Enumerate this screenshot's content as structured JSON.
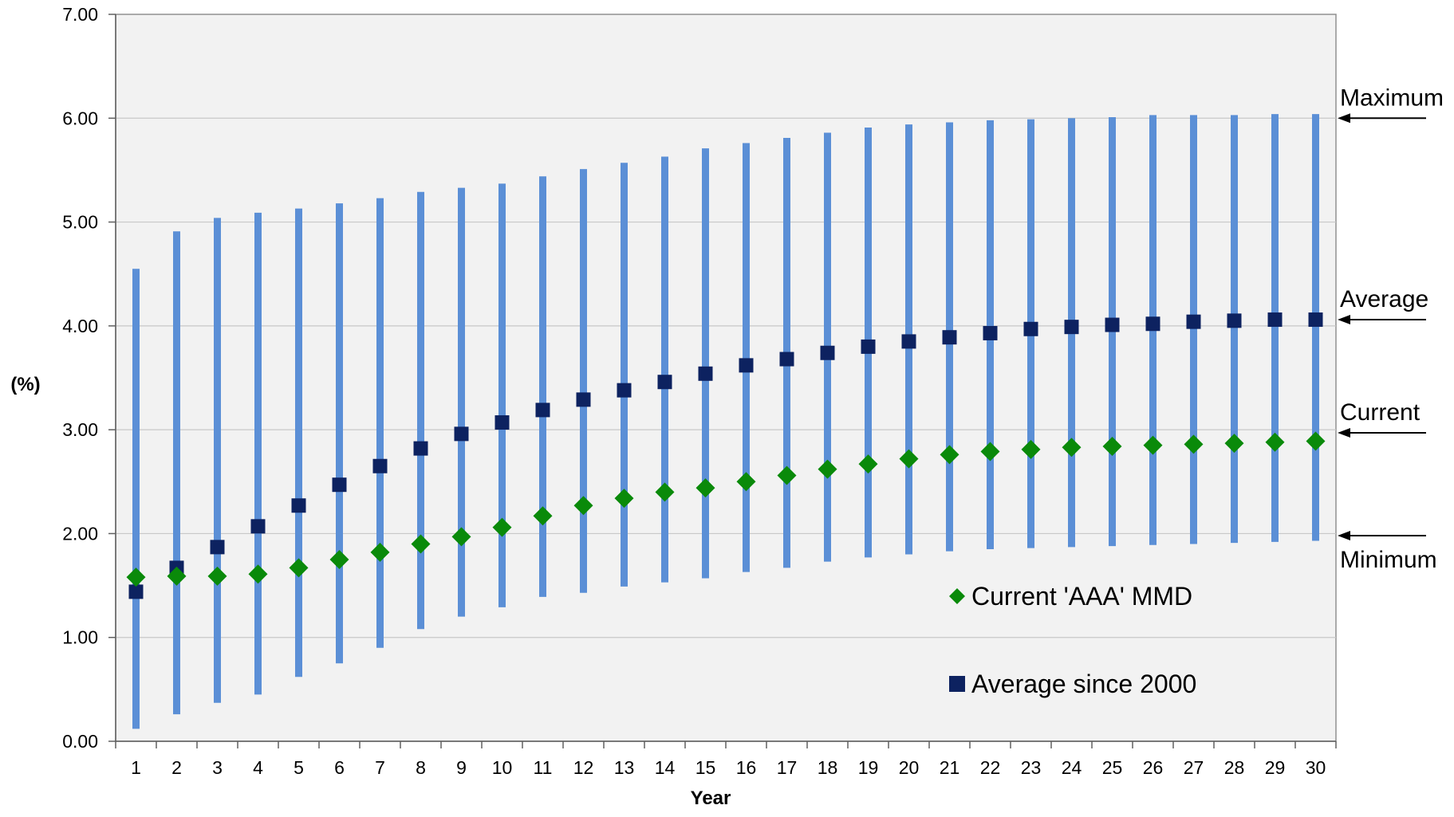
{
  "chart_data": {
    "type": "scatter",
    "title": "",
    "xlabel": "Year",
    "ylabel": "(%)",
    "x": [
      1,
      2,
      3,
      4,
      5,
      6,
      7,
      8,
      9,
      10,
      11,
      12,
      13,
      14,
      15,
      16,
      17,
      18,
      19,
      20,
      21,
      22,
      23,
      24,
      25,
      26,
      27,
      28,
      29,
      30
    ],
    "x_tick_labels": [
      "1",
      "2",
      "3",
      "4",
      "5",
      "6",
      "7",
      "8",
      "9",
      "10",
      "11",
      "12",
      "13",
      "14",
      "15",
      "16",
      "17",
      "18",
      "19",
      "20",
      "21",
      "22",
      "23",
      "24",
      "25",
      "26",
      "27",
      "28",
      "29",
      "30"
    ],
    "ylim": [
      0,
      7
    ],
    "y_tick_labels": [
      "0.00",
      "1.00",
      "2.00",
      "3.00",
      "4.00",
      "5.00",
      "6.00",
      "7.00"
    ],
    "y_ticks": [
      0,
      1,
      2,
      3,
      4,
      5,
      6,
      7
    ],
    "grid": "horizontal",
    "range": {
      "min": [
        0.12,
        0.26,
        0.37,
        0.45,
        0.62,
        0.75,
        0.9,
        1.08,
        1.2,
        1.29,
        1.39,
        1.43,
        1.49,
        1.53,
        1.57,
        1.63,
        1.67,
        1.73,
        1.77,
        1.8,
        1.83,
        1.85,
        1.86,
        1.87,
        1.88,
        1.89,
        1.9,
        1.91,
        1.92,
        1.93
      ],
      "max": [
        4.55,
        4.91,
        5.04,
        5.09,
        5.13,
        5.18,
        5.23,
        5.29,
        5.33,
        5.37,
        5.44,
        5.51,
        5.57,
        5.63,
        5.71,
        5.76,
        5.81,
        5.86,
        5.91,
        5.94,
        5.96,
        5.98,
        5.99,
        6.0,
        6.01,
        6.03,
        6.03,
        6.03,
        6.04,
        6.04
      ]
    },
    "series": [
      {
        "name": "Current 'AAA' MMD",
        "marker": "diamond",
        "color": "#0a8a0a",
        "values": [
          1.58,
          1.59,
          1.59,
          1.61,
          1.67,
          1.75,
          1.82,
          1.9,
          1.97,
          2.06,
          2.17,
          2.27,
          2.34,
          2.4,
          2.44,
          2.5,
          2.56,
          2.62,
          2.67,
          2.72,
          2.76,
          2.79,
          2.81,
          2.83,
          2.84,
          2.85,
          2.86,
          2.87,
          2.88,
          2.89
        ]
      },
      {
        "name": "Average since 2000",
        "marker": "square",
        "color": "#0d2260",
        "values": [
          1.44,
          1.67,
          1.87,
          2.07,
          2.27,
          2.47,
          2.65,
          2.82,
          2.96,
          3.07,
          3.19,
          3.29,
          3.38,
          3.46,
          3.54,
          3.62,
          3.68,
          3.74,
          3.8,
          3.85,
          3.89,
          3.93,
          3.97,
          3.99,
          4.01,
          4.02,
          4.04,
          4.05,
          4.06,
          4.06
        ]
      }
    ],
    "range_color": "#5b8fd6",
    "annotations": [
      {
        "label": "Maximum",
        "y": 6.0,
        "label_pos": "above"
      },
      {
        "label": "Average",
        "y": 4.06,
        "label_pos": "above"
      },
      {
        "label": "Current",
        "y": 2.97,
        "label_pos": "above"
      },
      {
        "label": "Minimum",
        "y": 1.98,
        "label_pos": "below"
      }
    ],
    "legend_position": "bottom-right (inside plot)",
    "plot_background": "#f2f2f2",
    "grid_color": "#c8c8c8"
  }
}
